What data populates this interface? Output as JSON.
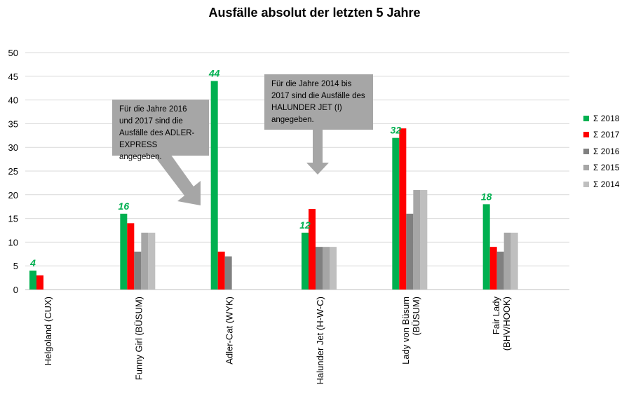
{
  "chart_data": {
    "type": "bar",
    "title": "Ausfälle absolut der letzten 5 Jahre",
    "categories": [
      "Helgoland (CUX)",
      "Funny Girl (BÜSUM)",
      "Adler-Cat (WYK)",
      "Halunder Jet (H-W-C)",
      "Lady von Büsum\n(BÜSUM)",
      "Fair Lady\n(BHV/HOOK)"
    ],
    "series": [
      {
        "name": "Σ 2018",
        "color": "#00b050",
        "values": [
          4,
          16,
          44,
          12,
          32,
          18
        ]
      },
      {
        "name": "Σ 2017",
        "color": "#ff0000",
        "values": [
          3,
          14,
          8,
          17,
          34,
          9
        ]
      },
      {
        "name": "Σ 2016",
        "color": "#808080",
        "values": [
          null,
          8,
          7,
          9,
          16,
          8
        ]
      },
      {
        "name": "Σ 2015",
        "color": "#a6a6a6",
        "values": [
          null,
          12,
          null,
          9,
          21,
          12
        ]
      },
      {
        "name": "Σ 2014",
        "color": "#bfbfbf",
        "values": [
          null,
          12,
          null,
          9,
          21,
          12
        ]
      }
    ],
    "data_labels": [
      "4",
      "16",
      "44",
      "12",
      "32",
      "18"
    ],
    "ylim": [
      0,
      50
    ],
    "yticks": [
      0,
      5,
      10,
      15,
      20,
      25,
      30,
      35,
      40,
      45,
      50
    ],
    "grid": true,
    "legend_position": "right",
    "annotations": [
      "Für die Jahre 2016 und 2017 sind die Ausfälle des ADLER-EXPRESS angegeben.",
      "Für die Jahre 2014 bis 2017 sind die Ausfälle des HALUNDER JET (I) angegeben."
    ]
  }
}
